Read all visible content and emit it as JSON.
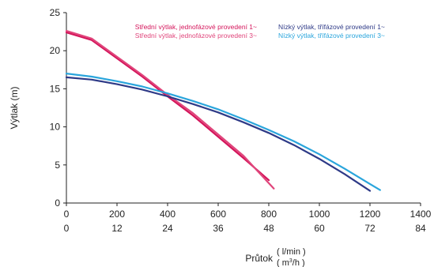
{
  "chart_data": {
    "type": "line",
    "ylabel": "Výtlak (m)",
    "xlabel": "Průtok",
    "x_unit_primary": "( l/min )",
    "x_unit_secondary": "( m",
    "x_unit_secondary_sup": "3",
    "x_unit_secondary_tail": "/h )",
    "xlim": [
      0,
      1400
    ],
    "ylim": [
      0,
      25
    ],
    "x_ticks_primary": [
      0,
      200,
      400,
      600,
      800,
      1000,
      1200,
      1400
    ],
    "x_ticks_secondary": [
      "0",
      "12",
      "24",
      "36",
      "48",
      "60",
      "72",
      "84"
    ],
    "y_ticks": [
      0,
      5,
      10,
      15,
      20,
      25
    ],
    "grid": false,
    "legend_position": "top",
    "series": [
      {
        "name": "Střední výtlak, jednofázové provedení 1~",
        "color": "#d4145a",
        "points": [
          [
            0,
            22.4
          ],
          [
            100,
            21.4
          ],
          [
            200,
            19.0
          ],
          [
            300,
            16.6
          ],
          [
            400,
            14.0
          ],
          [
            500,
            11.5
          ],
          [
            600,
            8.7
          ],
          [
            700,
            5.9
          ],
          [
            800,
            3.0
          ]
        ]
      },
      {
        "name": "Střední výtlak, jednofázové provedení 3~",
        "color": "#e0457b",
        "points": [
          [
            0,
            22.6
          ],
          [
            100,
            21.6
          ],
          [
            200,
            19.2
          ],
          [
            300,
            16.8
          ],
          [
            400,
            14.2
          ],
          [
            500,
            11.8
          ],
          [
            600,
            9.0
          ],
          [
            700,
            6.2
          ],
          [
            820,
            1.9
          ]
        ]
      },
      {
        "name": "Nízký výtlak, třífázové provedení 1~",
        "color": "#2e3a87",
        "points": [
          [
            0,
            16.5
          ],
          [
            100,
            16.2
          ],
          [
            200,
            15.6
          ],
          [
            300,
            14.9
          ],
          [
            400,
            14.0
          ],
          [
            500,
            13.0
          ],
          [
            600,
            11.9
          ],
          [
            700,
            10.6
          ],
          [
            800,
            9.2
          ],
          [
            900,
            7.6
          ],
          [
            1000,
            5.8
          ],
          [
            1100,
            3.8
          ],
          [
            1200,
            1.6
          ]
        ]
      },
      {
        "name": "Nízký výtlak, třífázové provedení 3~",
        "color": "#2aa5dc",
        "points": [
          [
            0,
            17.0
          ],
          [
            100,
            16.6
          ],
          [
            200,
            16.0
          ],
          [
            300,
            15.3
          ],
          [
            400,
            14.4
          ],
          [
            500,
            13.4
          ],
          [
            600,
            12.3
          ],
          [
            700,
            11.0
          ],
          [
            800,
            9.6
          ],
          [
            900,
            8.1
          ],
          [
            1000,
            6.4
          ],
          [
            1100,
            4.5
          ],
          [
            1200,
            2.5
          ],
          [
            1240,
            1.7
          ]
        ]
      }
    ]
  }
}
